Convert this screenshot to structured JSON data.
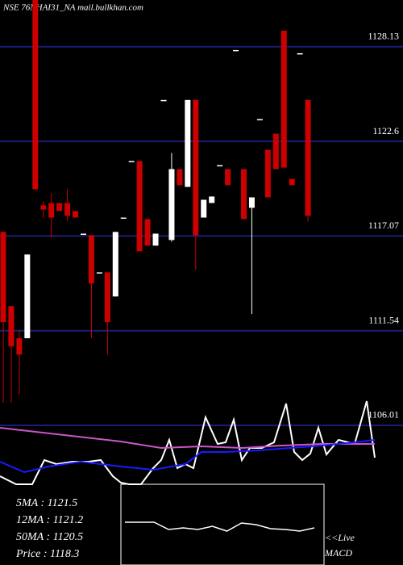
{
  "chart_data": [
    {
      "type": "candlestick",
      "title": "NSE 76NHAI31_NA mail.bullkhan.com",
      "open": [
        1117.31,
        1112.98,
        1111.1,
        1111.1,
        1130.86,
        1118.86,
        1119.0,
        1119.0,
        1119.0,
        1118.53,
        1117.21,
        1117.12,
        1114.95,
        1114.95,
        1113.54,
        1118.15,
        1121.45,
        1121.45,
        1118.06,
        1116.51,
        1125.02,
        1116.84,
        1120.98,
        1119.94,
        1125.02,
        1118.15,
        1119.0,
        1121.21,
        1120.98,
        1127.94,
        1120.98,
        1118.72,
        1123.9,
        1122.11,
        1123.05,
        1129.07,
        1120.41,
        1127.75,
        1125.02
      ],
      "high": [
        1117.31,
        1112.98,
        1111.57,
        1115.99,
        1130.86,
        1119.1,
        1119.57,
        1119.0,
        1119.8,
        1118.53,
        1117.21,
        1117.12,
        1114.95,
        1114.95,
        1117.31,
        1118.15,
        1121.45,
        1121.45,
        1118.06,
        1117.21,
        1125.02,
        1121.92,
        1120.98,
        1125.02,
        1125.02,
        1119.19,
        1119.38,
        1121.21,
        1120.98,
        1127.94,
        1120.98,
        1119.33,
        1123.9,
        1122.11,
        1123.05,
        1129.07,
        1120.41,
        1127.75,
        1125.02
      ],
      "low": [
        1107.33,
        1107.33,
        1107.8,
        1111.1,
        1119.8,
        1118.15,
        1116.98,
        1118.53,
        1117.92,
        1118.15,
        1117.21,
        1111.1,
        1114.95,
        1110.15,
        1113.54,
        1118.15,
        1121.45,
        1116.18,
        1116.51,
        1116.51,
        1125.02,
        1116.74,
        1120.04,
        1119.94,
        1115.1,
        1118.15,
        1119.0,
        1121.21,
        1120.04,
        1127.94,
        1118.06,
        1112.51,
        1123.9,
        1119.33,
        1120.98,
        1121.07,
        1120.04,
        1127.75,
        1117.92
      ],
      "close": [
        1112.04,
        1110.62,
        1110.15,
        1115.99,
        1119.8,
        1118.62,
        1118.15,
        1118.53,
        1118.25,
        1118.15,
        1117.21,
        1114.3,
        1114.95,
        1112.04,
        1117.31,
        1118.15,
        1121.45,
        1116.18,
        1116.51,
        1117.21,
        1125.02,
        1120.98,
        1120.04,
        1125.02,
        1117.12,
        1119.19,
        1119.38,
        1121.21,
        1120.04,
        1127.94,
        1118.06,
        1119.33,
        1123.9,
        1119.33,
        1120.98,
        1121.07,
        1120.04,
        1127.75,
        1118.25
      ],
      "ylim": [
        1104.5,
        1130.86
      ],
      "yticks": [
        1128.13,
        1122.6,
        1117.07,
        1111.54,
        1106.01
      ],
      "up_color": "#ffffff",
      "down_color": "#cc0000",
      "grid_color": "#1c1c78",
      "legend": [
        "5MA : 1121.5",
        "12MA : 1121.2",
        "50MA : 1120.5",
        "Price  : 1118.3"
      ]
    },
    {
      "type": "line",
      "xlim": [
        0,
        500
      ],
      "ylim": [
        0,
        110
      ],
      "series": [
        {
          "color": "#ffffff",
          "x": [
            0,
            20,
            40,
            55,
            70,
            90,
            110,
            125,
            140,
            150,
            160,
            175,
            190,
            200,
            210,
            220,
            230,
            240,
            255,
            270,
            280,
            290,
            300,
            310,
            325,
            340,
            355,
            365,
            375,
            385,
            395,
            405,
            420,
            440,
            455,
            465
          ],
          "values": [
            10,
            0,
            0,
            30,
            25,
            28,
            28,
            30,
            10,
            2,
            0,
            0,
            20,
            30,
            55,
            20,
            25,
            20,
            83,
            50,
            52,
            80,
            30,
            45,
            45,
            52,
            100,
            40,
            30,
            38,
            70,
            37,
            55,
            50,
            103,
            33
          ]
        },
        {
          "color": "#cc55cc",
          "x": [
            0,
            150,
            200,
            250,
            300,
            350,
            400,
            465
          ],
          "values": [
            70,
            53,
            45,
            47,
            45,
            48,
            50,
            50
          ]
        },
        {
          "color": "#1a1aff",
          "x": [
            0,
            30,
            60,
            100,
            150,
            190,
            230,
            250,
            280,
            320,
            360,
            400,
            440,
            465
          ],
          "values": [
            28,
            15,
            22,
            28,
            22,
            18,
            25,
            40,
            40,
            42,
            45,
            48,
            52,
            55
          ]
        }
      ]
    },
    {
      "type": "macd",
      "label": [
        "<<Live",
        "MACD"
      ],
      "xlim": [
        0,
        13
      ],
      "ylim": [
        -50,
        50
      ],
      "values": [
        3,
        3,
        3,
        -6,
        -4,
        -6,
        -2,
        -8,
        2,
        0,
        -5,
        -6,
        -8,
        -4
      ],
      "color": "#ffffff"
    }
  ]
}
